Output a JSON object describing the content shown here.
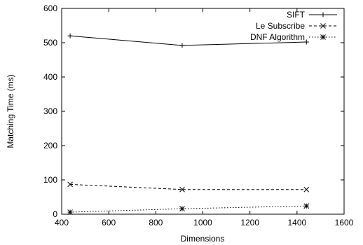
{
  "chart_data": {
    "type": "line",
    "xlabel": "Dimensions",
    "ylabel": "Matching Time (ms)",
    "xlim": [
      400,
      1600
    ],
    "ylim": [
      0,
      600
    ],
    "x_ticks": [
      400,
      600,
      800,
      1000,
      1200,
      1400,
      1600
    ],
    "y_ticks": [
      0,
      100,
      200,
      300,
      400,
      500,
      600
    ],
    "grid": false,
    "legend_position": "top-right",
    "series": [
      {
        "name": "SIFT",
        "marker": "plus",
        "dash": "solid",
        "x": [
          436,
          912,
          1440
        ],
        "y": [
          520,
          492,
          502
        ]
      },
      {
        "name": "Le Subscribe",
        "marker": "cross",
        "dash": "dashed",
        "x": [
          436,
          912,
          1440
        ],
        "y": [
          87,
          72,
          72
        ]
      },
      {
        "name": "DNF Algorithm",
        "marker": "star",
        "dash": "dotted",
        "x": [
          436,
          912,
          1440
        ],
        "y": [
          6,
          16,
          24
        ]
      }
    ]
  }
}
